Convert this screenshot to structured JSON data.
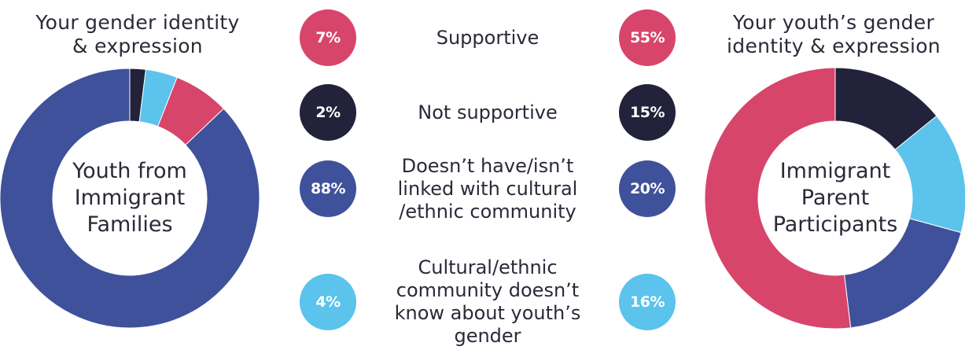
{
  "chart_data": [
    {
      "type": "pie",
      "title": "Your gender identity & expression",
      "center_label": "Youth from Immigrant Families",
      "categories": [
        "Supportive",
        "Not supportive",
        "Doesn’t have/isn’t linked with cultural /ethnic community",
        "Cultural/ethnic community doesn’t know about youth’s gender"
      ],
      "values": [
        7,
        2,
        88,
        4
      ],
      "value_labels": [
        "7%",
        "2%",
        "88%",
        "4%"
      ],
      "colors": [
        "#d8456a",
        "#22223a",
        "#3f519b",
        "#5bc3ec"
      ]
    },
    {
      "type": "pie",
      "title": "Your youth’s gender identity & expression",
      "center_label": "Immigrant Parent Participants",
      "categories": [
        "Supportive",
        "Not supportive",
        "Doesn’t have/isn’t linked with cultural /ethnic community",
        "Cultural/ethnic community doesn’t know about youth’s gender"
      ],
      "values": [
        55,
        15,
        20,
        16
      ],
      "value_labels": [
        "55%",
        "15%",
        "20%",
        "16%"
      ],
      "colors": [
        "#d8456a",
        "#22223a",
        "#3f519b",
        "#5bc3ec"
      ]
    }
  ],
  "left_chart": {
    "title_line1": "Your gender identity",
    "title_line2": "& expression",
    "center_line1": "Youth from",
    "center_line2": "Immigrant",
    "center_line3": "Families"
  },
  "right_chart": {
    "title_line1": "Your youth’s gender",
    "title_line2": "identity & expression",
    "center_line1": "Immigrant",
    "center_line2": "Parent",
    "center_line3": "Participants"
  },
  "legend": [
    {
      "lines": [
        "Supportive"
      ],
      "left_value": "7%",
      "right_value": "55%",
      "color": "#d8456a"
    },
    {
      "lines": [
        "Not supportive"
      ],
      "left_value": "2%",
      "right_value": "15%",
      "color": "#22223a"
    },
    {
      "lines": [
        "Doesn’t have/isn’t",
        "linked with cultural",
        "/ethnic community"
      ],
      "left_value": "88%",
      "right_value": "20%",
      "color": "#3f519b"
    },
    {
      "lines": [
        "Cultural/ethnic",
        "community doesn’t",
        "know about youth’s",
        "gender"
      ],
      "left_value": "4%",
      "right_value": "16%",
      "color": "#5bc3ec"
    }
  ]
}
